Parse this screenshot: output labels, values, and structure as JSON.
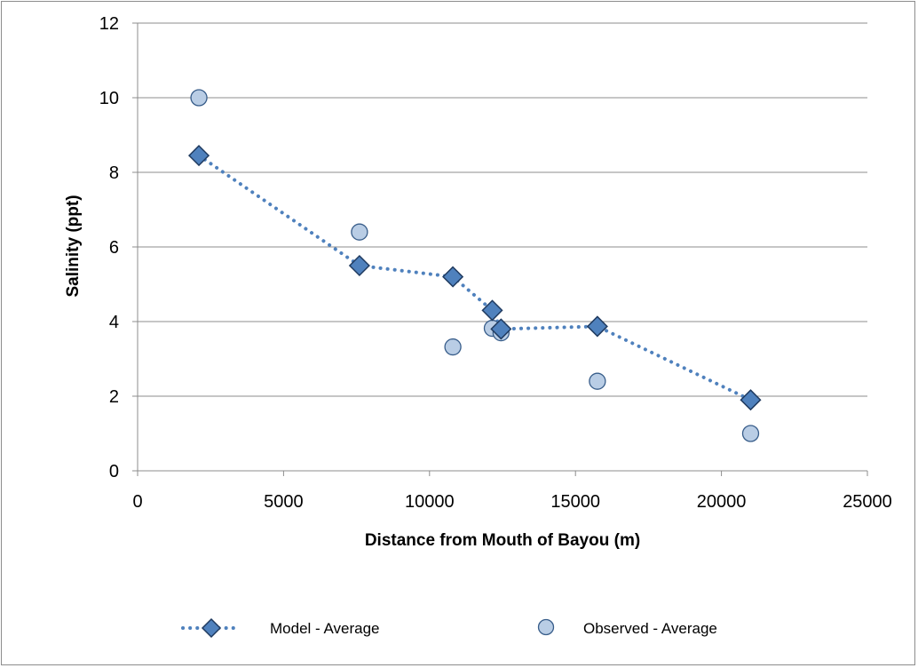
{
  "chart_data": {
    "type": "scatter",
    "xlabel": "Distance from Mouth of Bayou (m)",
    "ylabel": "Salinity (ppt)",
    "xlim": [
      0,
      25000
    ],
    "ylim": [
      0,
      12
    ],
    "x_ticks": [
      0,
      5000,
      10000,
      15000,
      20000,
      25000
    ],
    "y_ticks": [
      0,
      2,
      4,
      6,
      8,
      10,
      12
    ],
    "grid": "horizontal",
    "legend_placement": "bottom",
    "series": [
      {
        "name": "Model - Average",
        "style": "dotted line with diamond markers",
        "color": "#4f81bd",
        "points": [
          {
            "x": 2100,
            "y": 8.45
          },
          {
            "x": 7600,
            "y": 5.5
          },
          {
            "x": 10800,
            "y": 5.2
          },
          {
            "x": 12150,
            "y": 4.3
          },
          {
            "x": 12450,
            "y": 3.8
          },
          {
            "x": 15750,
            "y": 3.87
          },
          {
            "x": 21000,
            "y": 1.9
          }
        ]
      },
      {
        "name": "Observed - Average",
        "style": "circle markers",
        "color": "#b9cde5",
        "points": [
          {
            "x": 2100,
            "y": 10.0
          },
          {
            "x": 7600,
            "y": 6.4
          },
          {
            "x": 10800,
            "y": 3.32
          },
          {
            "x": 12150,
            "y": 3.82
          },
          {
            "x": 12450,
            "y": 3.7
          },
          {
            "x": 15750,
            "y": 2.4
          },
          {
            "x": 21000,
            "y": 1.0
          }
        ]
      }
    ]
  }
}
